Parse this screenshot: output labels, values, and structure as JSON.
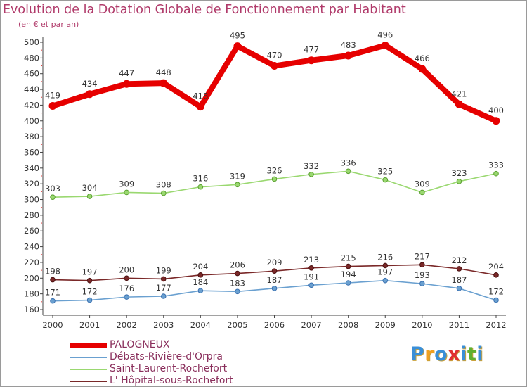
{
  "header": {
    "title": "Evolution de la Dotation Globale de Fonctionnement par Habitant",
    "subtitle": "(en € et par an)"
  },
  "brand": {
    "letters": [
      "P",
      "r",
      "o",
      "x",
      "i",
      "t",
      "i"
    ],
    "colors": [
      "#3a8fd8",
      "#f0a020",
      "#3a8fd8",
      "#e03030",
      "#3a8fd8",
      "#60b030",
      "#3a8fd8"
    ]
  },
  "chart_data": {
    "type": "line",
    "title": "Evolution de la Dotation Globale de Fonctionnement par Habitant",
    "subtitle": "(en € et par an)",
    "x": [
      "2000",
      "2001",
      "2002",
      "2003",
      "2004",
      "2005",
      "2006",
      "2007",
      "2008",
      "2009",
      "2010",
      "2011",
      "2012"
    ],
    "ylim": [
      160,
      500
    ],
    "yticks": [
      160,
      180,
      200,
      220,
      240,
      260,
      280,
      300,
      320,
      340,
      360,
      380,
      400,
      420,
      440,
      460,
      480,
      500
    ],
    "grid": false,
    "legend_position": "bottom-left",
    "series": [
      {
        "name": "PALOGNEUX",
        "color": "#e60000",
        "values": [
          419,
          434,
          447,
          448,
          418,
          495,
          470,
          477,
          483,
          496,
          466,
          421,
          400
        ]
      },
      {
        "name": "Débats-Rivière-d'Orpra",
        "color": "#6aa0d0",
        "values": [
          171,
          172,
          176,
          177,
          184,
          183,
          187,
          191,
          194,
          197,
          193,
          187,
          172
        ]
      },
      {
        "name": "Saint-Laurent-Rochefort",
        "color": "#9ad870",
        "values": [
          303,
          304,
          309,
          308,
          316,
          319,
          326,
          332,
          336,
          325,
          309,
          323,
          333
        ]
      },
      {
        "name": "L' Hôpital-sous-Rochefort",
        "color": "#7a2828",
        "values": [
          198,
          197,
          200,
          199,
          204,
          206,
          209,
          213,
          215,
          216,
          217,
          212,
          204
        ]
      }
    ]
  }
}
